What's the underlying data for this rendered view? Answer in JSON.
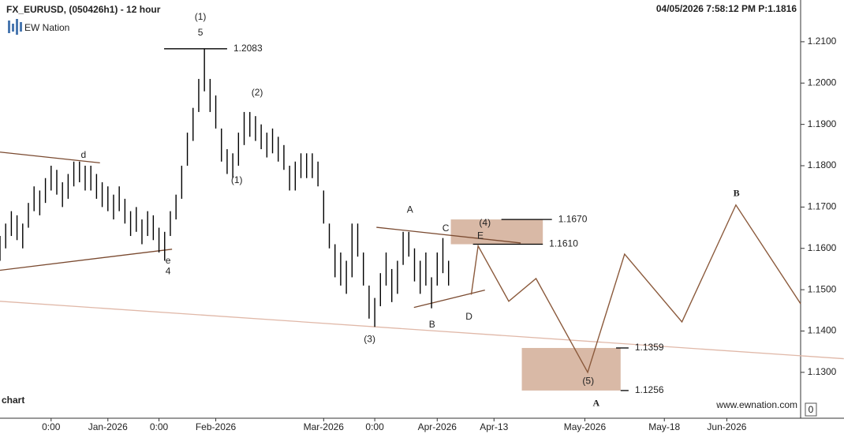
{
  "chart_data": {
    "type": "range-bar",
    "title": "FX_EURUSD, (050426h1) - 12 hour",
    "subtitle": "04/05/2026 7:58:12 PM   P:1.1816",
    "logo": "EW Nation",
    "watermark": "www.ewnation.com",
    "corner_label": "chart",
    "indicator_value": 0,
    "color": "#000000",
    "xlim": [
      0,
      141
    ],
    "ylim": [
      1.1189,
      1.2201
    ],
    "xticks": [
      {
        "value": 9,
        "label": "0:00"
      },
      {
        "value": 19,
        "label": "Jan-2026"
      },
      {
        "value": 28,
        "label": "0:00"
      },
      {
        "value": 38,
        "label": "Feb-2026"
      },
      {
        "value": 57,
        "label": "Mar-2026"
      },
      {
        "value": 66,
        "label": "0:00"
      },
      {
        "value": 77,
        "label": "Apr-2026"
      },
      {
        "value": 87,
        "label": "Apr-13"
      },
      {
        "value": 103,
        "label": "May-2026"
      },
      {
        "value": 117,
        "label": "May-18"
      },
      {
        "value": 128,
        "label": "Jun-2026"
      }
    ],
    "yticks": [
      {
        "value": 1.13,
        "label": "1.1300"
      },
      {
        "value": 1.14,
        "label": "1.1400"
      },
      {
        "value": 1.15,
        "label": "1.1500"
      },
      {
        "value": 1.16,
        "label": "1.1600"
      },
      {
        "value": 1.17,
        "label": "1.1700"
      },
      {
        "value": 1.18,
        "label": "1.1800"
      },
      {
        "value": 1.19,
        "label": "1.1900"
      },
      {
        "value": 1.2,
        "label": "1.2000"
      },
      {
        "value": 1.21,
        "label": "1.2100"
      }
    ],
    "high": [
      1.163,
      1.166,
      1.169,
      1.168,
      1.166,
      1.171,
      1.175,
      1.174,
      1.177,
      1.18,
      1.179,
      1.176,
      1.178,
      1.181,
      1.181,
      1.18,
      1.18,
      1.178,
      1.176,
      1.175,
      1.173,
      1.175,
      1.172,
      1.169,
      1.17,
      1.167,
      1.169,
      1.168,
      1.165,
      1.164,
      1.169,
      1.173,
      1.18,
      1.188,
      1.194,
      1.201,
      1.2083,
      1.201,
      1.197,
      1.189,
      1.184,
      1.183,
      1.188,
      1.193,
      1.193,
      1.192,
      1.19,
      1.188,
      1.189,
      1.187,
      1.185,
      1.18,
      1.181,
      1.183,
      1.183,
      1.183,
      1.181,
      1.174,
      1.166,
      1.161,
      1.159,
      1.157,
      1.166,
      1.166,
      1.159,
      1.151,
      1.148,
      1.154,
      1.159,
      1.155,
      1.157,
      1.164,
      1.164,
      1.16,
      1.157,
      1.159,
      1.153,
      1.159,
      1.1625,
      1.157
    ],
    "low": [
      1.157,
      1.16,
      1.163,
      1.162,
      1.16,
      1.165,
      1.169,
      1.168,
      1.171,
      1.174,
      1.173,
      1.17,
      1.172,
      1.175,
      1.176,
      1.174,
      1.174,
      1.172,
      1.17,
      1.169,
      1.167,
      1.169,
      1.166,
      1.163,
      1.164,
      1.161,
      1.163,
      1.162,
      1.159,
      1.157,
      1.163,
      1.167,
      1.172,
      1.18,
      1.186,
      1.193,
      1.198,
      1.193,
      1.189,
      1.181,
      1.178,
      1.177,
      1.18,
      1.185,
      1.187,
      1.186,
      1.184,
      1.182,
      1.183,
      1.181,
      1.179,
      1.174,
      1.174,
      1.177,
      1.177,
      1.177,
      1.175,
      1.166,
      1.16,
      1.153,
      1.151,
      1.149,
      1.153,
      1.158,
      1.151,
      1.143,
      1.141,
      1.146,
      1.151,
      1.147,
      1.149,
      1.156,
      1.158,
      1.152,
      1.149,
      1.151,
      1.1455,
      1.151,
      1.154,
      1.151
    ],
    "projection": {
      "color": "#8b5a3c",
      "x": [
        83.0,
        84.2,
        89.6,
        94.4,
        103.5,
        110,
        120.1,
        129.6,
        141
      ],
      "y": [
        1.1488,
        1.1606,
        1.1472,
        1.1527,
        1.13,
        1.1586,
        1.1422,
        1.1705,
        1.1466
      ]
    },
    "trendlines": [
      {
        "x": [
          0,
          17.6
        ],
        "y": [
          1.1833,
          1.1807
        ],
        "color": "#7a4a30"
      },
      {
        "x": [
          0,
          30.3
        ],
        "y": [
          1.1547,
          1.1598
        ],
        "color": "#7a4a30"
      },
      {
        "x": [
          0,
          148.6
        ],
        "y": [
          1.1472,
          1.1333
        ],
        "color": "#e0b8a8"
      },
      {
        "x": [
          66.3,
          91.7
        ],
        "y": [
          1.1651,
          1.1613
        ],
        "color": "#7a4a30"
      },
      {
        "x": [
          72.9,
          85.4
        ],
        "y": [
          1.1457,
          1.1499
        ],
        "color": "#7a4a30"
      }
    ],
    "zones": [
      {
        "x": [
          79.4,
          95.6
        ],
        "y": [
          1.161,
          1.167
        ],
        "color": "#d9b9a6"
      },
      {
        "x": [
          91.9,
          109.3
        ],
        "y": [
          1.1256,
          1.1359
        ],
        "color": "#d9b9a6"
      }
    ],
    "levels": [
      {
        "value": 1.2083,
        "x": [
          28.9,
          40
        ]
      },
      {
        "value": 1.167,
        "label": "1.1670",
        "x": [
          88.3,
          97.2
        ]
      },
      {
        "value": 1.161,
        "label": "1.1610",
        "x": [
          83.3,
          95.6
        ]
      },
      {
        "value": 1.1359,
        "x": [
          108.5,
          110.7
        ]
      },
      {
        "value": 1.1256,
        "x": [
          109.3,
          110.7
        ]
      }
    ],
    "annotations": [
      {
        "text": "(1)",
        "x": 35.3,
        "y": 1.2159
      },
      {
        "text": "5",
        "x": 35.3,
        "y": 1.2121
      },
      {
        "text": "(2)",
        "x": 45.3,
        "y": 1.1976
      },
      {
        "text": "(1)",
        "x": 41.7,
        "y": 1.1764
      },
      {
        "text": "d",
        "x": 14.7,
        "y": 1.1825
      },
      {
        "text": "e",
        "x": 29.6,
        "y": 1.1569
      },
      {
        "text": "4",
        "x": 29.6,
        "y": 1.1544
      },
      {
        "text": "(3)",
        "x": 65.1,
        "y": 1.1379
      },
      {
        "text": "A",
        "x": 72.2,
        "y": 1.1692
      },
      {
        "text": "B",
        "x": 76.1,
        "y": 1.1415
      },
      {
        "text": "C",
        "x": 78.5,
        "y": 1.1648
      },
      {
        "text": "D",
        "x": 82.6,
        "y": 1.1434
      },
      {
        "text": "E",
        "x": 84.6,
        "y": 1.1629
      },
      {
        "text": "(4)",
        "x": 85.4,
        "y": 1.1661
      },
      {
        "text": "(5)",
        "x": 103.6,
        "y": 1.1278
      },
      {
        "text": "A",
        "x": 105,
        "y": 1.1224,
        "color": "#a0785a"
      },
      {
        "text": "B",
        "x": 129.7,
        "y": 1.1732,
        "color": "#a0785a"
      }
    ]
  }
}
